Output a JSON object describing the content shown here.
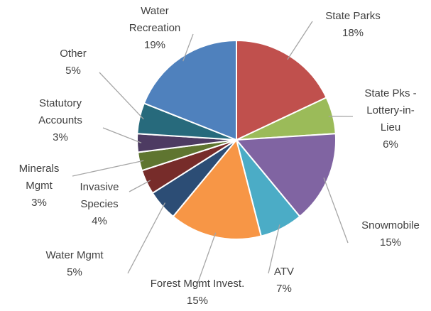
{
  "chart_data": {
    "type": "pie",
    "categories": [
      "State Parks",
      "State Pks - Lottery-in-Lieu",
      "Snowmobile",
      "ATV",
      "Forest Mgmt Invest.",
      "Water Mgmt",
      "Invasive Species",
      "Minerals Mgmt",
      "Statutory Accounts",
      "Other",
      "Water Recreation"
    ],
    "values": [
      18,
      6,
      15,
      7,
      15,
      5,
      4,
      3,
      3,
      5,
      19
    ],
    "value_labels": [
      "18%",
      "6%",
      "15%",
      "7%",
      "15%",
      "5%",
      "4%",
      "3%",
      "3%",
      "5%",
      "19%"
    ],
    "colors": [
      "#c0504d",
      "#9bbb59",
      "#8064a2",
      "#4bacc6",
      "#f79646",
      "#2c4d75",
      "#772c2a",
      "#5f7530",
      "#4d3b62",
      "#276a7c",
      "#4f81bd"
    ]
  }
}
